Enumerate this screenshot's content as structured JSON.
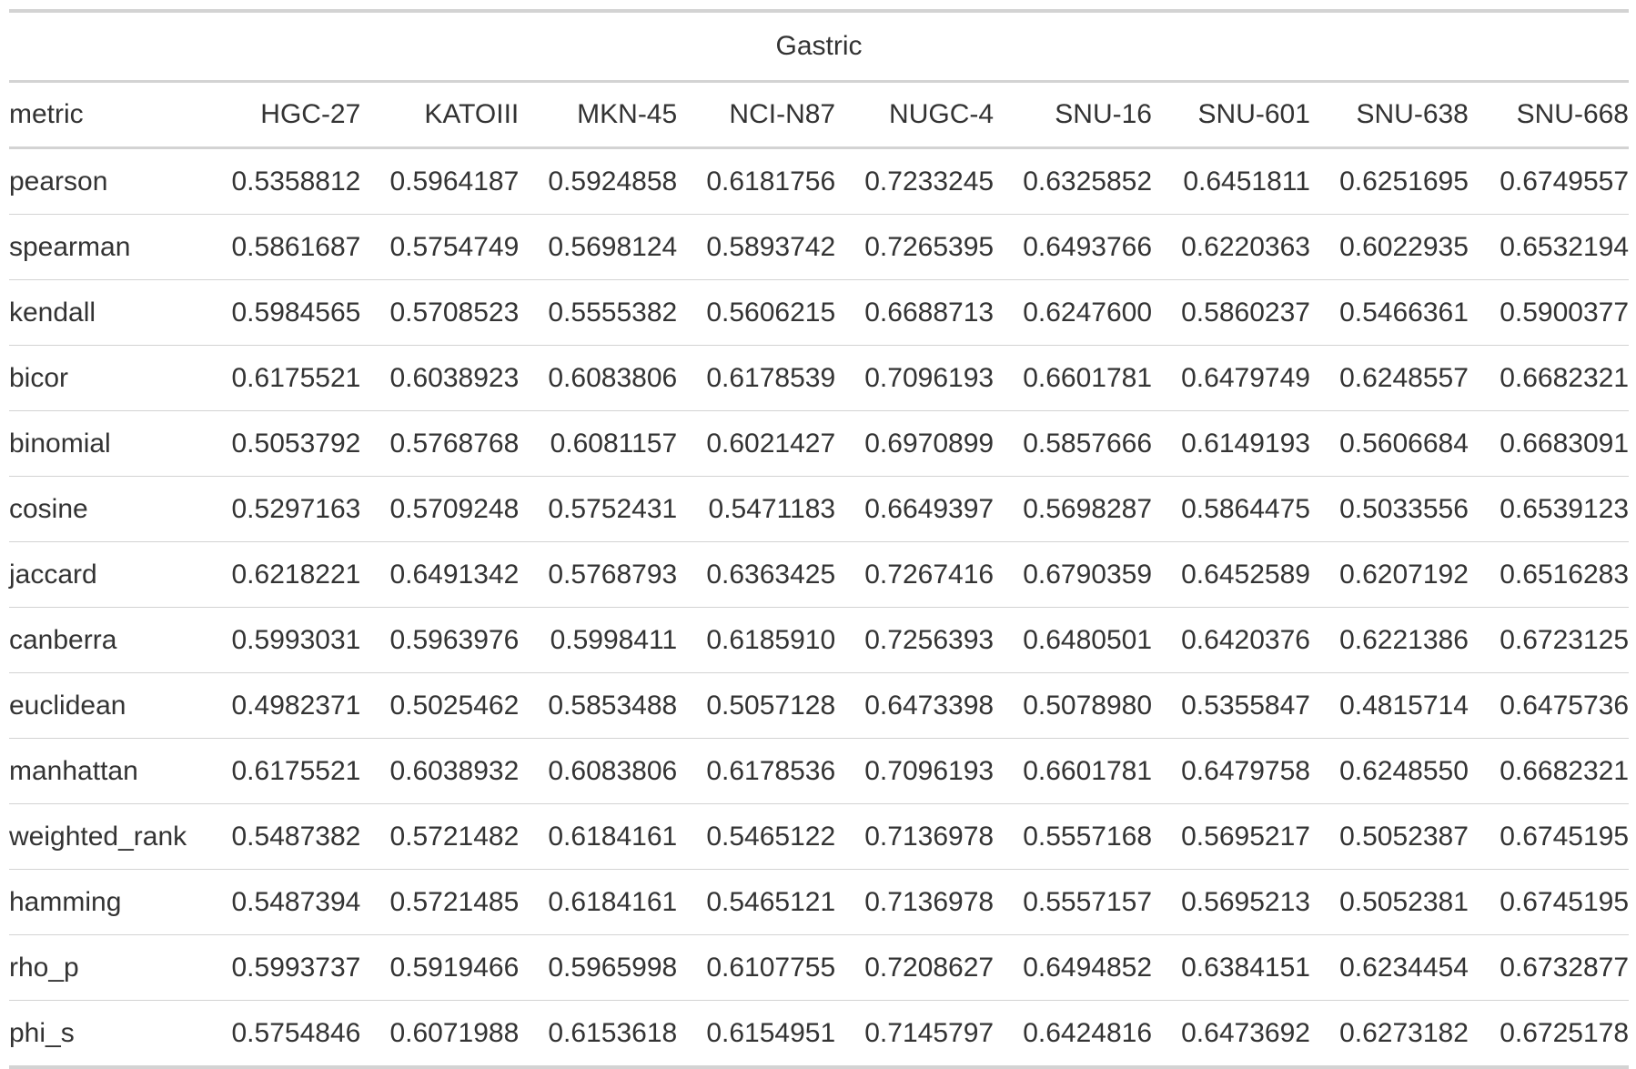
{
  "chart_data": {
    "type": "table",
    "title": "Gastric",
    "columns": [
      "metric",
      "HGC-27",
      "KATOIII",
      "MKN-45",
      "NCI-N87",
      "NUGC-4",
      "SNU-16",
      "SNU-601",
      "SNU-638",
      "SNU-668"
    ],
    "rows": [
      [
        "pearson",
        "0.5358812",
        "0.5964187",
        "0.5924858",
        "0.6181756",
        "0.7233245",
        "0.6325852",
        "0.6451811",
        "0.6251695",
        "0.6749557"
      ],
      [
        "spearman",
        "0.5861687",
        "0.5754749",
        "0.5698124",
        "0.5893742",
        "0.7265395",
        "0.6493766",
        "0.6220363",
        "0.6022935",
        "0.6532194"
      ],
      [
        "kendall",
        "0.5984565",
        "0.5708523",
        "0.5555382",
        "0.5606215",
        "0.6688713",
        "0.6247600",
        "0.5860237",
        "0.5466361",
        "0.5900377"
      ],
      [
        "bicor",
        "0.6175521",
        "0.6038923",
        "0.6083806",
        "0.6178539",
        "0.7096193",
        "0.6601781",
        "0.6479749",
        "0.6248557",
        "0.6682321"
      ],
      [
        "binomial",
        "0.5053792",
        "0.5768768",
        "0.6081157",
        "0.6021427",
        "0.6970899",
        "0.5857666",
        "0.6149193",
        "0.5606684",
        "0.6683091"
      ],
      [
        "cosine",
        "0.5297163",
        "0.5709248",
        "0.5752431",
        "0.5471183",
        "0.6649397",
        "0.5698287",
        "0.5864475",
        "0.5033556",
        "0.6539123"
      ],
      [
        "jaccard",
        "0.6218221",
        "0.6491342",
        "0.5768793",
        "0.6363425",
        "0.7267416",
        "0.6790359",
        "0.6452589",
        "0.6207192",
        "0.6516283"
      ],
      [
        "canberra",
        "0.5993031",
        "0.5963976",
        "0.5998411",
        "0.6185910",
        "0.7256393",
        "0.6480501",
        "0.6420376",
        "0.6221386",
        "0.6723125"
      ],
      [
        "euclidean",
        "0.4982371",
        "0.5025462",
        "0.5853488",
        "0.5057128",
        "0.6473398",
        "0.5078980",
        "0.5355847",
        "0.4815714",
        "0.6475736"
      ],
      [
        "manhattan",
        "0.6175521",
        "0.6038932",
        "0.6083806",
        "0.6178536",
        "0.7096193",
        "0.6601781",
        "0.6479758",
        "0.6248550",
        "0.6682321"
      ],
      [
        "weighted_rank",
        "0.5487382",
        "0.5721482",
        "0.6184161",
        "0.5465122",
        "0.7136978",
        "0.5557168",
        "0.5695217",
        "0.5052387",
        "0.6745195"
      ],
      [
        "hamming",
        "0.5487394",
        "0.5721485",
        "0.6184161",
        "0.5465121",
        "0.7136978",
        "0.5557157",
        "0.5695213",
        "0.5052381",
        "0.6745195"
      ],
      [
        "rho_p",
        "0.5993737",
        "0.5919466",
        "0.5965998",
        "0.6107755",
        "0.7208627",
        "0.6494852",
        "0.6384151",
        "0.6234454",
        "0.6732877"
      ],
      [
        "phi_s",
        "0.5754846",
        "0.6071988",
        "0.6153618",
        "0.6154951",
        "0.7145797",
        "0.6424816",
        "0.6473692",
        "0.6273182",
        "0.6725178"
      ]
    ]
  }
}
